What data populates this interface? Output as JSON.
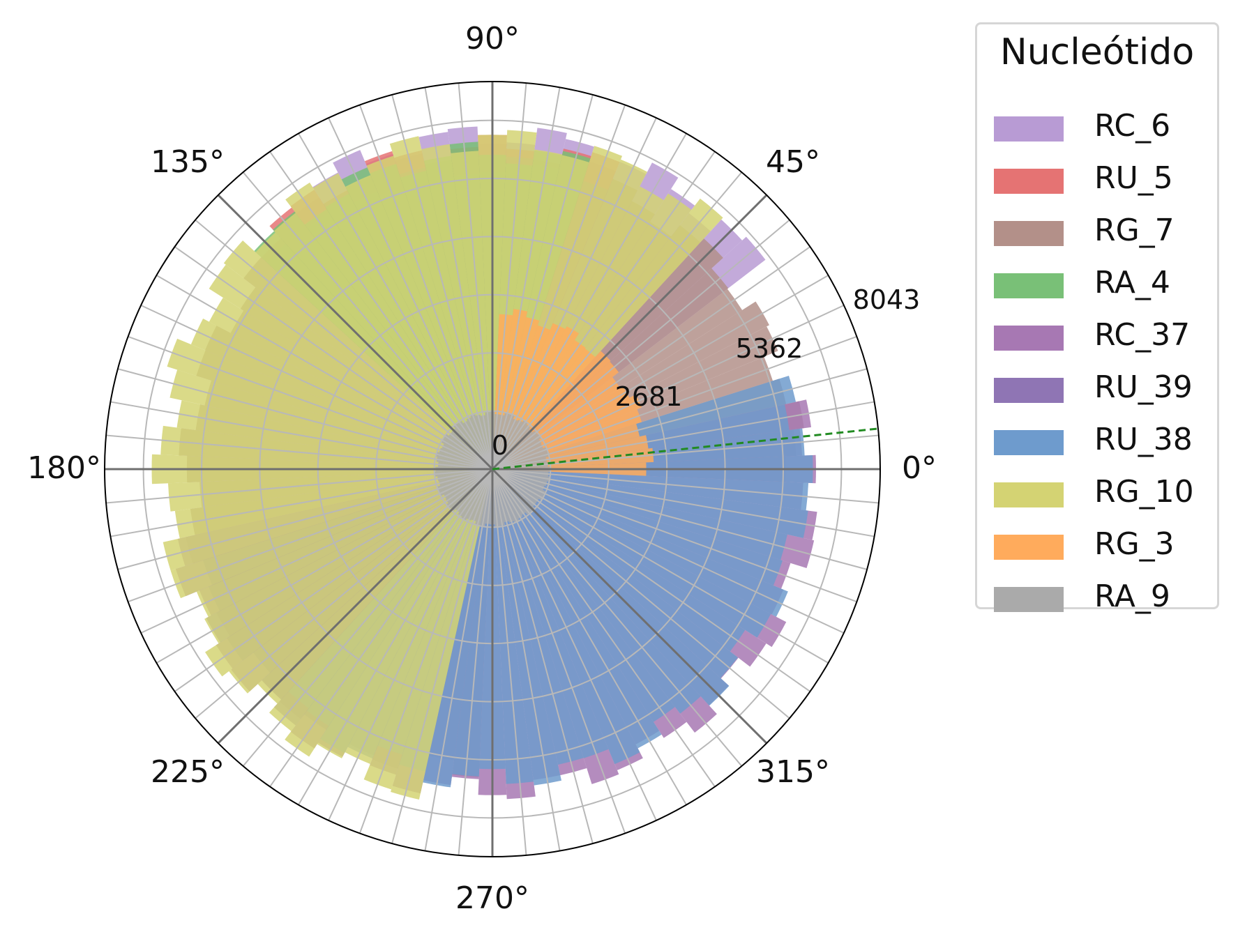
{
  "chart_data": {
    "type": "polar_bar",
    "title": "",
    "angle_ticks": [
      "0°",
      "45°",
      "90°",
      "135°",
      "180°",
      "225°",
      "270°",
      "315°"
    ],
    "radial_ticks": [
      "0",
      "2681",
      "5362",
      "8043"
    ],
    "rmax": 8043,
    "bins": 72,
    "reference_line": {
      "angle_deg": 6,
      "color": "#228b22",
      "style": "dashed"
    },
    "legend": {
      "title": "Nucleótido",
      "position": "right"
    },
    "series": [
      {
        "name": "RC_6",
        "color": "#b89bd4",
        "start_deg": 40,
        "end_deg": 128,
        "radius": 7700
      },
      {
        "name": "RU_5",
        "color": "#e57373",
        "start_deg": 68,
        "end_deg": 136,
        "radius": 7450
      },
      {
        "name": "RG_7",
        "color": "#b39089",
        "start_deg": 0,
        "end_deg": 265,
        "radius": 7000
      },
      {
        "name": "RA_4",
        "color": "#79c077",
        "start_deg": 75,
        "end_deg": 135,
        "radius": 7300
      },
      {
        "name": "RC_37",
        "color": "#a778b3",
        "start_deg": 195,
        "end_deg": 372,
        "radius": 7400
      },
      {
        "name": "RU_39",
        "color": "#8f75b4",
        "start_deg": 200,
        "end_deg": 235,
        "radius": 7200
      },
      {
        "name": "RU_38",
        "color": "#6e9bcd",
        "start_deg": 230,
        "end_deg": 375,
        "radius": 7150
      },
      {
        "name": "RG_10",
        "color": "#d4d373",
        "start_deg": 50,
        "end_deg": 255,
        "radius": 7600
      },
      {
        "name": "RG_3",
        "color": "#ffab5c",
        "start_deg": 0,
        "end_deg": 85,
        "radius": 3600
      },
      {
        "name": "RA_9",
        "color": "#aaaaaa",
        "start_deg": 0,
        "end_deg": 360,
        "radius": 1300
      }
    ]
  }
}
